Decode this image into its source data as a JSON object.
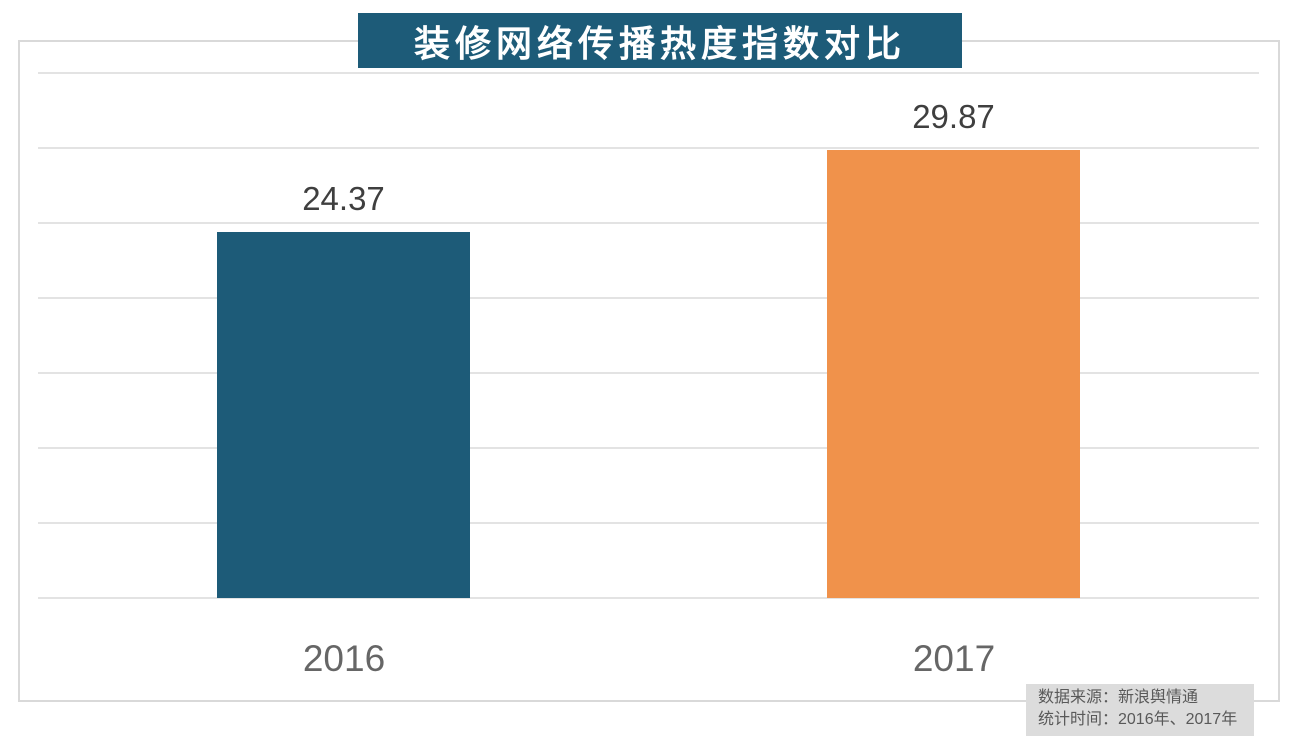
{
  "title": "装修网络传播热度指数对比",
  "source_box": {
    "line1": "数据来源：新浪舆情通",
    "line2": "统计时间：2016年、2017年"
  },
  "colors": {
    "banner_bg": "#1d5b78",
    "banner_text": "#ffffff",
    "bar_2016": "#1d5b78",
    "bar_2017": "#f0924b",
    "value_label": "#3f3f3f",
    "axis_label": "#666666",
    "gridline": "#e3e3e3",
    "frame_border": "#d9d9d9",
    "source_bg": "#dcdcdc",
    "source_text": "#595959"
  },
  "chart_data": {
    "type": "bar",
    "title": "装修网络传播热度指数对比",
    "categories": [
      "2016",
      "2017"
    ],
    "values": [
      24.37,
      29.87
    ],
    "bar_colors": [
      "#1d5b78",
      "#f0924b"
    ],
    "xlabel": "",
    "ylabel": "",
    "ylim": [
      0,
      35
    ],
    "y_gridline_step": 5,
    "y_axis_labels_shown": false,
    "grid": true,
    "legend": false,
    "annotations": [
      "24.37",
      "29.87"
    ],
    "source_note": "数据来源：新浪舆情通",
    "period_note": "统计时间：2016年、2017年"
  }
}
